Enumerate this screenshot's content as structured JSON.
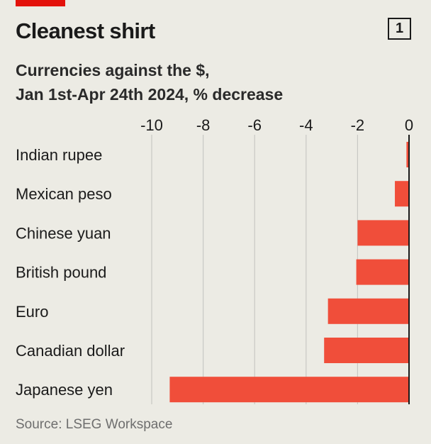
{
  "header": {
    "title": "Cleanest shirt",
    "chart_number": "1",
    "subtitle_line1": "Currencies against the $,",
    "subtitle_line2": "Jan 1st-Apr 24th 2024, % decrease"
  },
  "footer": {
    "source": "Source: LSEG Workspace"
  },
  "colors": {
    "bar": "#f04e3a",
    "brand_red": "#e3120b",
    "background": "#ecebe4",
    "gridline": "#c8c8c4"
  },
  "chart_data": {
    "type": "bar",
    "orientation": "horizontal",
    "categories": [
      "Indian rupee",
      "Mexican peso",
      "Chinese yuan",
      "British pound",
      "Euro",
      "Canadian dollar",
      "Japanese yen"
    ],
    "values": [
      -0.1,
      -0.55,
      -2.0,
      -2.05,
      -3.15,
      -3.3,
      -9.3
    ],
    "xlim": [
      -10,
      0
    ],
    "xticks": [
      -10,
      -8,
      -6,
      -4,
      -2,
      0
    ],
    "xtick_labels": [
      "-10",
      "-8",
      "-6",
      "-4",
      "-2",
      "0"
    ],
    "grid": true,
    "xaxis_position": "top"
  }
}
